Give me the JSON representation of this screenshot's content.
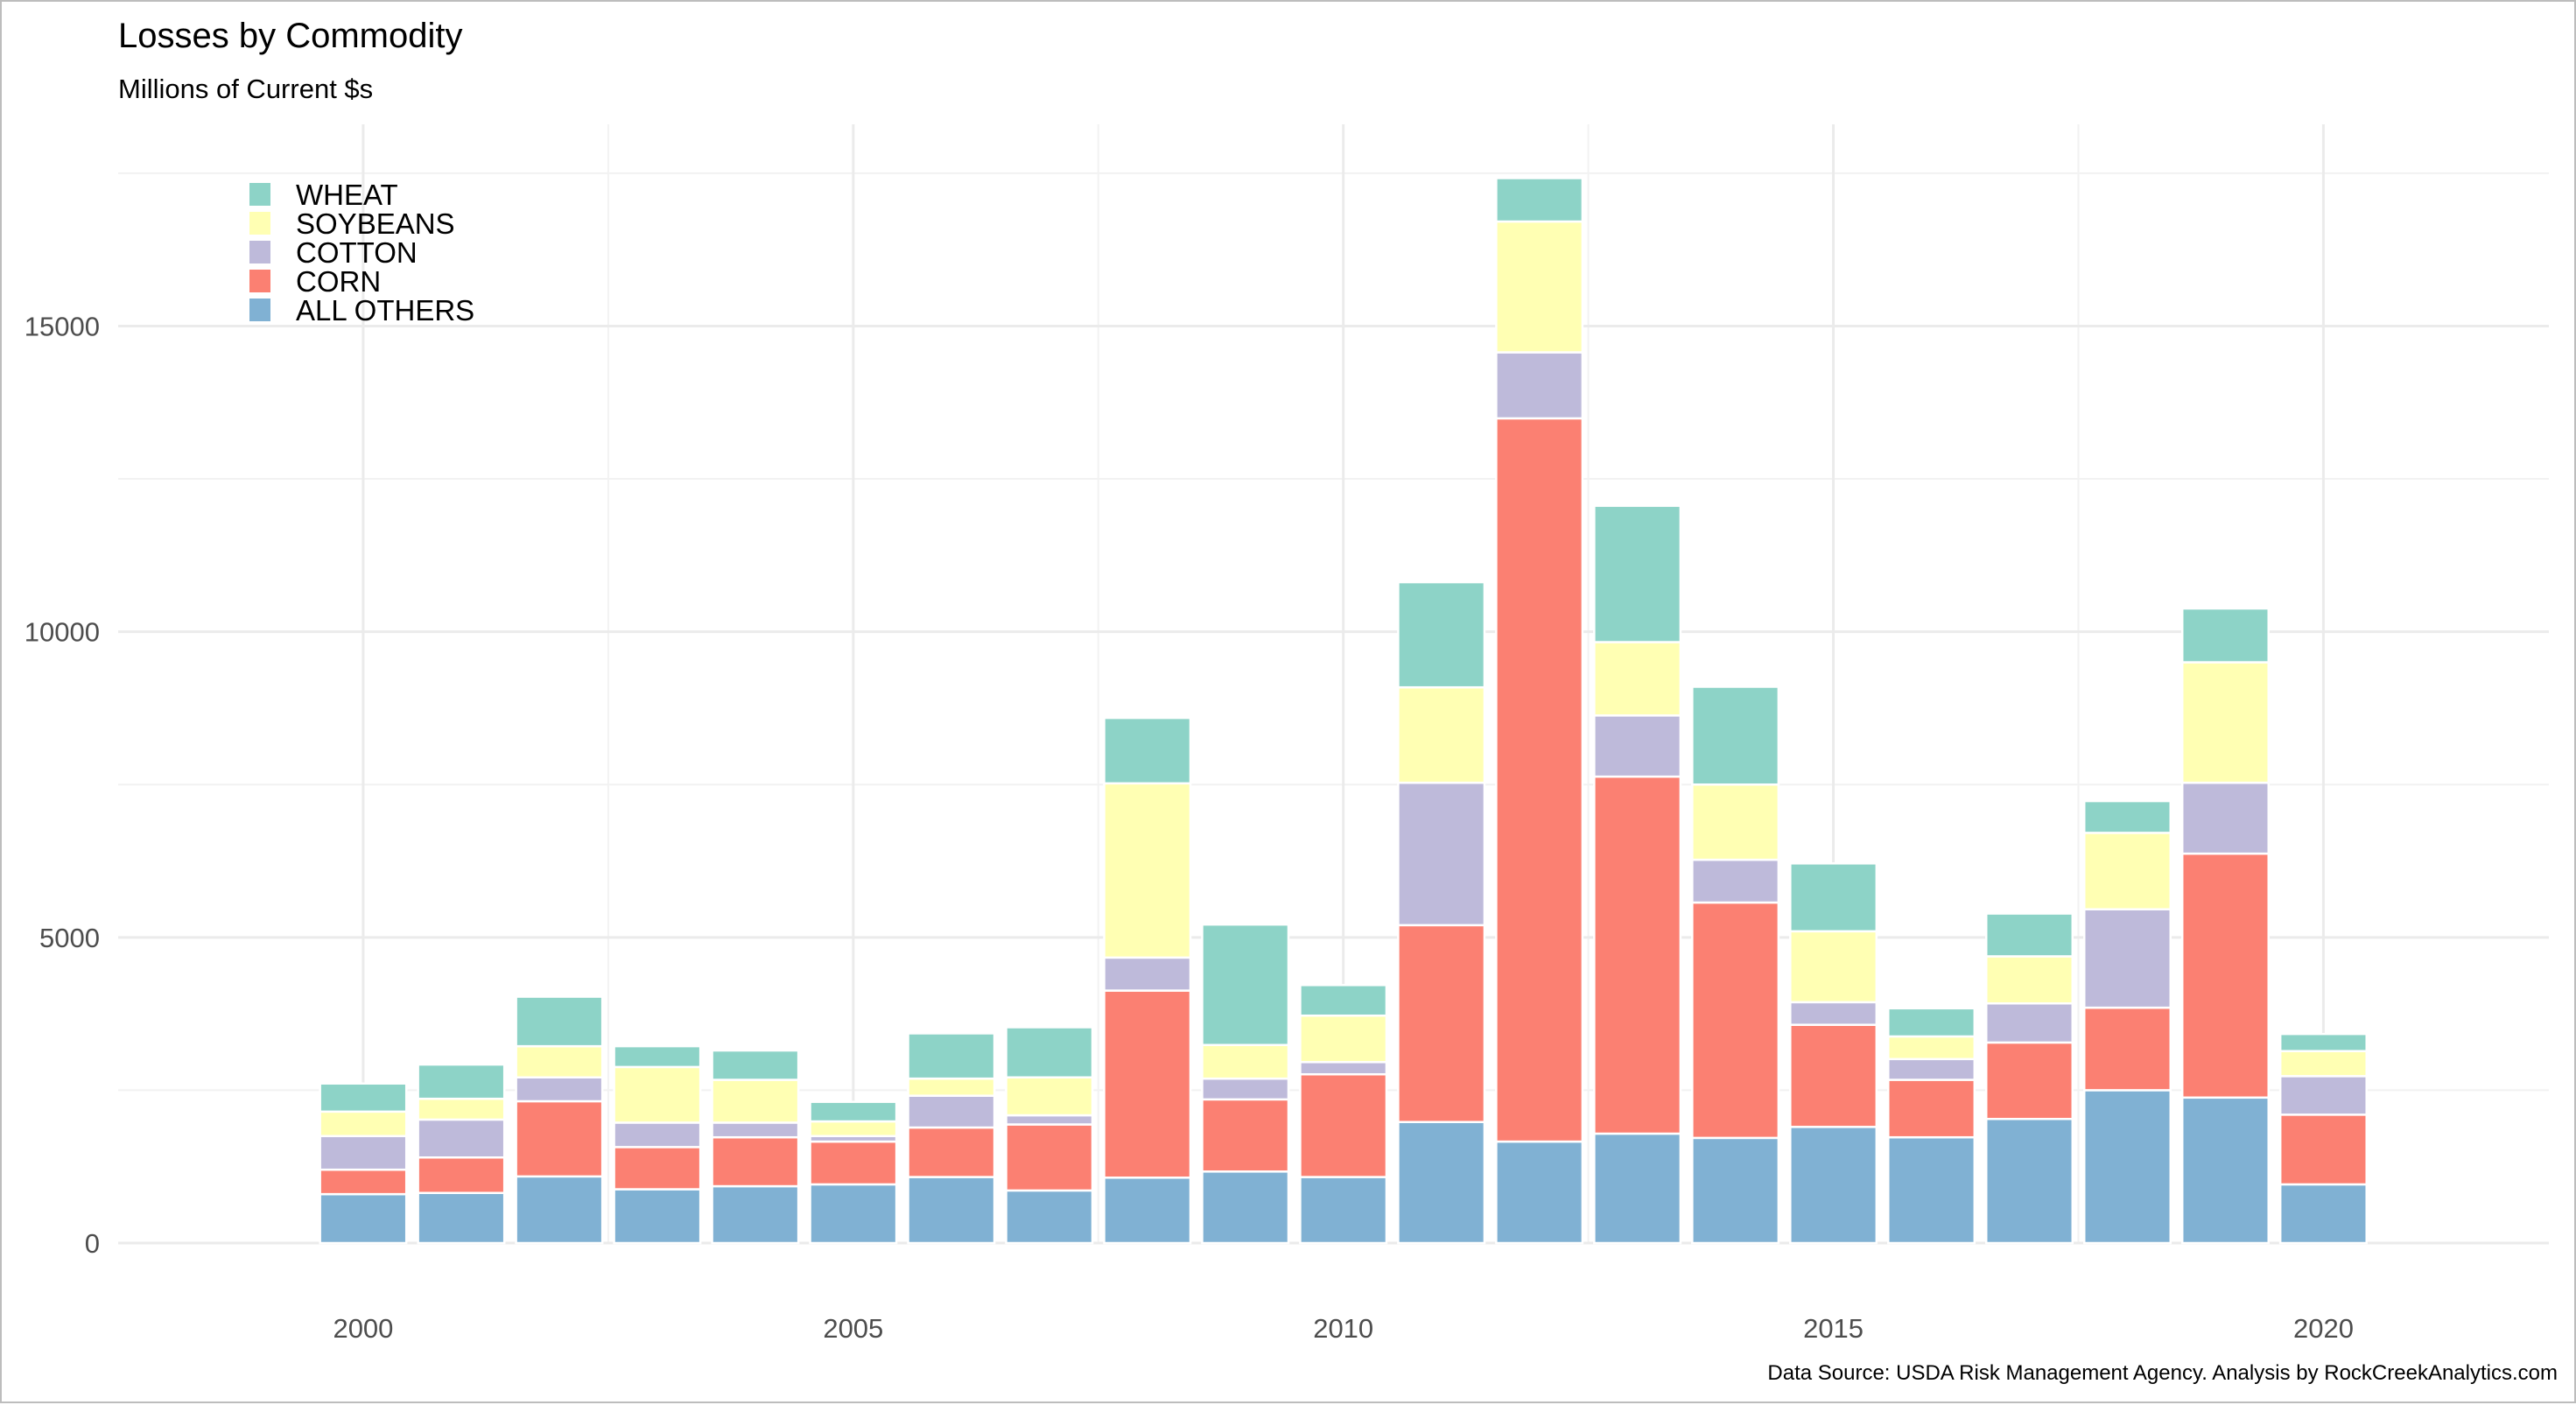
{
  "chart_data": {
    "type": "bar",
    "stacked": true,
    "title": "Losses by Commodity",
    "subtitle": "Millions of Current $s",
    "caption": "Data Source: USDA Risk Management Agency.  Analysis by RockCreekAnalytics.com",
    "xlabel": "",
    "ylabel": "",
    "x": [
      2000,
      2001,
      2002,
      2003,
      2004,
      2005,
      2006,
      2007,
      2008,
      2009,
      2010,
      2011,
      2012,
      2013,
      2014,
      2015,
      2016,
      2017,
      2018,
      2019,
      2020
    ],
    "x_ticks": [
      2000,
      2005,
      2010,
      2015,
      2020
    ],
    "y_ticks": [
      0,
      5000,
      10000,
      15000
    ],
    "xlim": [
      1997.5,
      2022.3
    ],
    "ylim": [
      0,
      18300
    ],
    "grid": true,
    "legend_position": "top-left",
    "series": [
      {
        "name": "ALL OTHERS",
        "color": "#80b1d3",
        "values": [
          800,
          820,
          1090,
          880,
          930,
          960,
          1080,
          860,
          1070,
          1170,
          1080,
          1980,
          1660,
          1790,
          1720,
          1900,
          1730,
          2030,
          2500,
          2380,
          960
        ]
      },
      {
        "name": "CORN",
        "color": "#fb8072",
        "values": [
          400,
          580,
          1230,
          690,
          800,
          700,
          810,
          1080,
          3060,
          1180,
          1680,
          3220,
          11830,
          5840,
          3850,
          1670,
          940,
          1250,
          1350,
          3990,
          1140
        ]
      },
      {
        "name": "COTTON",
        "color": "#bebada",
        "values": [
          550,
          620,
          390,
          400,
          240,
          90,
          520,
          150,
          540,
          340,
          200,
          2330,
          1080,
          1000,
          700,
          370,
          340,
          640,
          1610,
          1160,
          630
        ]
      },
      {
        "name": "SOYBEANS",
        "color": "#ffffb3",
        "values": [
          400,
          340,
          510,
          910,
          700,
          240,
          280,
          620,
          2850,
          550,
          760,
          1560,
          2140,
          1200,
          1230,
          1160,
          370,
          770,
          1250,
          1970,
          410
        ]
      },
      {
        "name": "WHEAT",
        "color": "#8dd3c7",
        "values": [
          460,
          560,
          810,
          340,
          480,
          320,
          740,
          820,
          1070,
          1970,
          500,
          1720,
          710,
          2230,
          1600,
          1110,
          460,
          700,
          520,
          880,
          280
        ]
      }
    ],
    "legend_order": [
      "WHEAT",
      "SOYBEANS",
      "COTTON",
      "CORN",
      "ALL OTHERS"
    ]
  }
}
